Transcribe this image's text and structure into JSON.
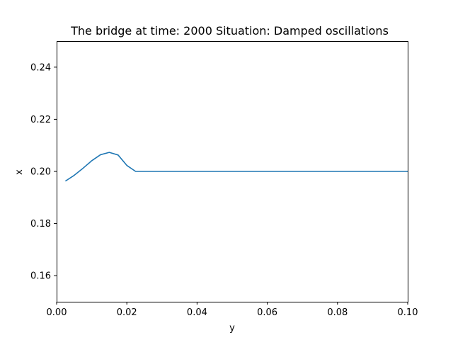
{
  "chart_data": {
    "type": "line",
    "title": "The bridge at time: 2000 Situation: Damped oscillations",
    "xlabel": "y",
    "ylabel": "x",
    "xlim": [
      0.0,
      0.1
    ],
    "ylim": [
      0.15,
      0.25
    ],
    "xticks": [
      0.0,
      0.02,
      0.04,
      0.06,
      0.08,
      0.1
    ],
    "xtick_labels": [
      "0.00",
      "0.02",
      "0.04",
      "0.06",
      "0.08",
      "0.10"
    ],
    "yticks": [
      0.16,
      0.18,
      0.2,
      0.22,
      0.24
    ],
    "ytick_labels": [
      "0.16",
      "0.18",
      "0.20",
      "0.22",
      "0.24"
    ],
    "grid": false,
    "legend": "none",
    "series": [
      {
        "color": "#1f77b4",
        "x": [
          0.0025,
          0.005,
          0.0075,
          0.01,
          0.0125,
          0.015,
          0.0175,
          0.02,
          0.0225,
          0.025,
          0.03,
          0.04,
          0.05,
          0.06,
          0.07,
          0.08,
          0.09,
          0.1
        ],
        "y": [
          0.1963,
          0.1985,
          0.2012,
          0.2041,
          0.2064,
          0.2073,
          0.2063,
          0.2023,
          0.2,
          0.2,
          0.2,
          0.2,
          0.2,
          0.2,
          0.2,
          0.2,
          0.2,
          0.2
        ]
      }
    ]
  }
}
